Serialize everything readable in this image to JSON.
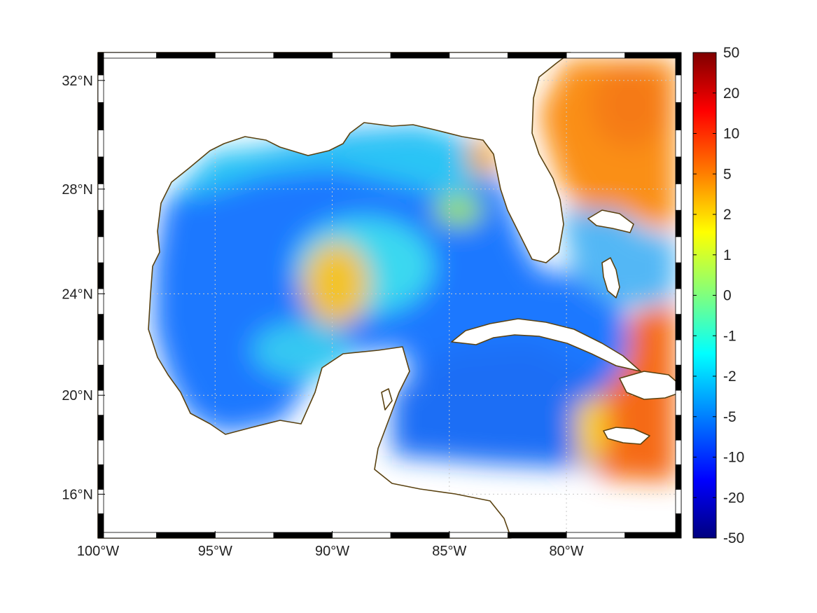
{
  "map": {
    "projection": "mercator",
    "extent": {
      "lon_min": -100,
      "lon_max": -75.1,
      "lat_min": 14.2,
      "lat_max": 33.0
    },
    "x_ticks": [
      {
        "lon": -100,
        "label": "100°W"
      },
      {
        "lon": -95,
        "label": "95°W"
      },
      {
        "lon": -90,
        "label": "90°W"
      },
      {
        "lon": -85,
        "label": "85°W"
      },
      {
        "lon": -80,
        "label": "80°W"
      }
    ],
    "y_ticks": [
      {
        "lat": 32,
        "label": "32°N"
      },
      {
        "lat": 28,
        "label": "28°N"
      },
      {
        "lat": 24,
        "label": "24°N"
      },
      {
        "lat": 20,
        "label": "20°N"
      },
      {
        "lat": 16,
        "label": "16°N"
      }
    ],
    "grid": true,
    "grid_style": "dotted",
    "frame_style": "alternating black/white border",
    "land_fill": "#ffffff",
    "coastline_color": "#5a4211",
    "field_regions": [
      {
        "name": "western-gulf",
        "lon": -94.5,
        "lat": 23.5,
        "value": -7
      },
      {
        "name": "central-gulf-eddy",
        "lon": -89.5,
        "lat": 24.3,
        "value": 3
      },
      {
        "name": "northeast-gulf-eddy",
        "lon": -83.5,
        "lat": 28.8,
        "value": 4
      },
      {
        "name": "caribbean-west",
        "lon": -84,
        "lat": 19,
        "value": -6
      },
      {
        "name": "atlantic-east",
        "lon": -77,
        "lat": 30,
        "value": 7
      },
      {
        "name": "windward-passage",
        "lon": -76.5,
        "lat": 19,
        "value": 12
      }
    ]
  },
  "colorbar": {
    "tick_labels": [
      "50",
      "20",
      "10",
      "5",
      "2",
      "1",
      "0",
      "-1",
      "-2",
      "-5",
      "-10",
      "-20",
      "-50"
    ],
    "colormap": "jet",
    "colors": [
      "#7f0000",
      "#ff0000",
      "#ff7f00",
      "#ffff00",
      "#7fff7f",
      "#00ffff",
      "#007fff",
      "#0000ff",
      "#00007f"
    ]
  }
}
